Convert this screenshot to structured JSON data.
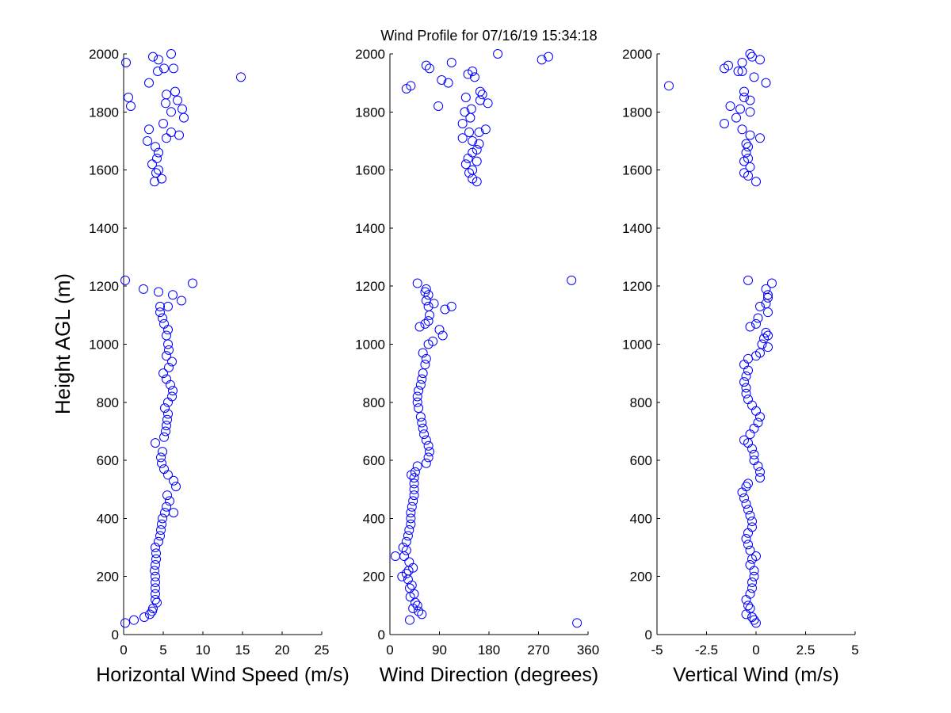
{
  "title": "Wind Profile for  07/16/19 15:34:18",
  "ylabel": "Height AGL (m)",
  "marker_color": "#0000ff",
  "chart_data": [
    {
      "type": "scatter",
      "xlabel": "Horizontal Wind Speed (m/s)",
      "xlim": [
        0,
        25
      ],
      "xticks": [
        0,
        5,
        10,
        15,
        20,
        25
      ],
      "xtick_labels": [
        "0",
        "5",
        "10",
        "15",
        "20",
        "25"
      ],
      "ylim": [
        0,
        2000
      ],
      "yticks": [
        0,
        200,
        400,
        600,
        800,
        1000,
        1200,
        1400,
        1600,
        1800,
        2000
      ],
      "ytick_labels": [
        "0",
        "200",
        "400",
        "600",
        "800",
        "1000",
        "1200",
        "1400",
        "1600",
        "1800",
        "2000"
      ],
      "points": [
        [
          0.2,
          40
        ],
        [
          1.3,
          50
        ],
        [
          2.6,
          60
        ],
        [
          3.3,
          70
        ],
        [
          3.6,
          80
        ],
        [
          3.7,
          90
        ],
        [
          4.2,
          110
        ],
        [
          4.0,
          120
        ],
        [
          4.0,
          140
        ],
        [
          4.0,
          160
        ],
        [
          4.0,
          180
        ],
        [
          4.0,
          200
        ],
        [
          3.9,
          220
        ],
        [
          4.0,
          240
        ],
        [
          4.1,
          260
        ],
        [
          4.1,
          280
        ],
        [
          4.0,
          300
        ],
        [
          4.4,
          320
        ],
        [
          4.6,
          340
        ],
        [
          4.7,
          360
        ],
        [
          4.8,
          380
        ],
        [
          4.9,
          400
        ],
        [
          5.2,
          420
        ],
        [
          6.3,
          420
        ],
        [
          5.4,
          440
        ],
        [
          5.8,
          460
        ],
        [
          5.5,
          480
        ],
        [
          6.6,
          510
        ],
        [
          6.3,
          530
        ],
        [
          5.6,
          550
        ],
        [
          5.1,
          570
        ],
        [
          4.8,
          590
        ],
        [
          4.7,
          610
        ],
        [
          4.9,
          630
        ],
        [
          4.0,
          660
        ],
        [
          5.1,
          680
        ],
        [
          5.3,
          700
        ],
        [
          5.4,
          720
        ],
        [
          5.5,
          740
        ],
        [
          5.6,
          760
        ],
        [
          5.2,
          780
        ],
        [
          5.6,
          800
        ],
        [
          6.1,
          820
        ],
        [
          6.2,
          840
        ],
        [
          5.9,
          860
        ],
        [
          5.4,
          880
        ],
        [
          5.0,
          900
        ],
        [
          5.7,
          920
        ],
        [
          6.1,
          940
        ],
        [
          5.4,
          960
        ],
        [
          5.7,
          980
        ],
        [
          5.6,
          1000
        ],
        [
          5.4,
          1030
        ],
        [
          5.6,
          1050
        ],
        [
          5.1,
          1070
        ],
        [
          4.9,
          1090
        ],
        [
          4.6,
          1110
        ],
        [
          4.6,
          1130
        ],
        [
          5.6,
          1130
        ],
        [
          7.3,
          1150
        ],
        [
          6.2,
          1170
        ],
        [
          4.4,
          1180
        ],
        [
          2.5,
          1190
        ],
        [
          8.7,
          1210
        ],
        [
          0.2,
          1220
        ],
        [
          3.9,
          1560
        ],
        [
          4.8,
          1570
        ],
        [
          4.1,
          1590
        ],
        [
          4.4,
          1600
        ],
        [
          3.6,
          1620
        ],
        [
          4.2,
          1640
        ],
        [
          4.4,
          1660
        ],
        [
          4.0,
          1680
        ],
        [
          3.0,
          1700
        ],
        [
          5.4,
          1710
        ],
        [
          7.0,
          1720
        ],
        [
          6.0,
          1730
        ],
        [
          3.2,
          1740
        ],
        [
          5.0,
          1760
        ],
        [
          7.6,
          1780
        ],
        [
          6.0,
          1800
        ],
        [
          7.4,
          1810
        ],
        [
          0.9,
          1820
        ],
        [
          5.3,
          1830
        ],
        [
          6.8,
          1840
        ],
        [
          0.6,
          1850
        ],
        [
          5.4,
          1860
        ],
        [
          6.5,
          1870
        ],
        [
          3.2,
          1900
        ],
        [
          14.8,
          1920
        ],
        [
          4.3,
          1940
        ],
        [
          5.1,
          1950
        ],
        [
          6.3,
          1950
        ],
        [
          4.4,
          1980
        ],
        [
          3.7,
          1990
        ],
        [
          0.3,
          1970
        ],
        [
          6.0,
          2000
        ]
      ]
    },
    {
      "type": "scatter",
      "xlabel": "Wind Direction (degrees)",
      "xlim": [
        0,
        360
      ],
      "xticks": [
        0,
        90,
        180,
        270,
        360
      ],
      "xtick_labels": [
        "0",
        "90",
        "180",
        "270",
        "360"
      ],
      "ylim": [
        0,
        2000
      ],
      "yticks": [
        0,
        200,
        400,
        600,
        800,
        1000,
        1200,
        1400,
        1600,
        1800,
        2000
      ],
      "ytick_labels": [
        "0",
        "200",
        "400",
        "600",
        "800",
        "1000",
        "1200",
        "1400",
        "1600",
        "1800",
        "2000"
      ],
      "points": [
        [
          340,
          40
        ],
        [
          36,
          50
        ],
        [
          58,
          70
        ],
        [
          52,
          80
        ],
        [
          42,
          90
        ],
        [
          50,
          100
        ],
        [
          46,
          110
        ],
        [
          37,
          130
        ],
        [
          44,
          140
        ],
        [
          36,
          160
        ],
        [
          40,
          170
        ],
        [
          33,
          190
        ],
        [
          22,
          200
        ],
        [
          30,
          210
        ],
        [
          34,
          220
        ],
        [
          42,
          230
        ],
        [
          35,
          250
        ],
        [
          26,
          270
        ],
        [
          10,
          270
        ],
        [
          30,
          290
        ],
        [
          24,
          300
        ],
        [
          30,
          320
        ],
        [
          33,
          340
        ],
        [
          35,
          360
        ],
        [
          38,
          380
        ],
        [
          38,
          400
        ],
        [
          38,
          420
        ],
        [
          40,
          440
        ],
        [
          42,
          460
        ],
        [
          44,
          480
        ],
        [
          44,
          500
        ],
        [
          44,
          520
        ],
        [
          44,
          540
        ],
        [
          39,
          550
        ],
        [
          46,
          560
        ],
        [
          50,
          580
        ],
        [
          66,
          590
        ],
        [
          70,
          610
        ],
        [
          72,
          630
        ],
        [
          70,
          650
        ],
        [
          66,
          670
        ],
        [
          62,
          690
        ],
        [
          60,
          710
        ],
        [
          58,
          730
        ],
        [
          56,
          750
        ],
        [
          52,
          780
        ],
        [
          50,
          800
        ],
        [
          50,
          820
        ],
        [
          52,
          840
        ],
        [
          56,
          860
        ],
        [
          58,
          880
        ],
        [
          60,
          900
        ],
        [
          64,
          930
        ],
        [
          66,
          950
        ],
        [
          60,
          970
        ],
        [
          70,
          1000
        ],
        [
          78,
          1010
        ],
        [
          96,
          1030
        ],
        [
          90,
          1050
        ],
        [
          54,
          1060
        ],
        [
          64,
          1070
        ],
        [
          70,
          1080
        ],
        [
          72,
          1100
        ],
        [
          100,
          1120
        ],
        [
          112,
          1130
        ],
        [
          70,
          1130
        ],
        [
          80,
          1140
        ],
        [
          66,
          1150
        ],
        [
          70,
          1170
        ],
        [
          64,
          1180
        ],
        [
          66,
          1190
        ],
        [
          50,
          1210
        ],
        [
          330,
          1220
        ],
        [
          158,
          1560
        ],
        [
          150,
          1570
        ],
        [
          144,
          1590
        ],
        [
          150,
          1600
        ],
        [
          138,
          1620
        ],
        [
          158,
          1630
        ],
        [
          142,
          1640
        ],
        [
          150,
          1660
        ],
        [
          158,
          1670
        ],
        [
          162,
          1690
        ],
        [
          150,
          1700
        ],
        [
          132,
          1710
        ],
        [
          144,
          1730
        ],
        [
          162,
          1730
        ],
        [
          174,
          1740
        ],
        [
          132,
          1760
        ],
        [
          146,
          1780
        ],
        [
          136,
          1800
        ],
        [
          148,
          1810
        ],
        [
          88,
          1820
        ],
        [
          178,
          1830
        ],
        [
          164,
          1840
        ],
        [
          138,
          1850
        ],
        [
          168,
          1860
        ],
        [
          164,
          1870
        ],
        [
          30,
          1880
        ],
        [
          38,
          1890
        ],
        [
          94,
          1910
        ],
        [
          106,
          1900
        ],
        [
          154,
          1920
        ],
        [
          142,
          1930
        ],
        [
          150,
          1940
        ],
        [
          72,
          1950
        ],
        [
          66,
          1960
        ],
        [
          112,
          1970
        ],
        [
          276,
          1980
        ],
        [
          288,
          1990
        ],
        [
          196,
          2000
        ]
      ]
    },
    {
      "type": "scatter",
      "xlabel": "Vertical Wind (m/s)",
      "xlim": [
        -5,
        5
      ],
      "xticks": [
        -5,
        -2.5,
        0,
        2.5,
        5
      ],
      "xtick_labels": [
        "-5",
        "-2.5",
        "0",
        "2.5",
        "5"
      ],
      "ylim": [
        0,
        2000
      ],
      "yticks": [
        0,
        200,
        400,
        600,
        800,
        1000,
        1200,
        1400,
        1600,
        1800,
        2000
      ],
      "ytick_labels": [
        "0",
        "200",
        "400",
        "600",
        "800",
        "1000",
        "1200",
        "1400",
        "1600",
        "1800",
        "2000"
      ],
      "points": [
        [
          0.0,
          40
        ],
        [
          -0.1,
          50
        ],
        [
          -0.2,
          60
        ],
        [
          -0.5,
          70
        ],
        [
          -0.3,
          90
        ],
        [
          -0.4,
          100
        ],
        [
          -0.5,
          120
        ],
        [
          -0.3,
          140
        ],
        [
          -0.2,
          160
        ],
        [
          -0.2,
          180
        ],
        [
          -0.1,
          200
        ],
        [
          -0.1,
          220
        ],
        [
          -0.3,
          240
        ],
        [
          -0.2,
          260
        ],
        [
          0.0,
          270
        ],
        [
          -0.3,
          290
        ],
        [
          -0.4,
          310
        ],
        [
          -0.5,
          330
        ],
        [
          -0.4,
          350
        ],
        [
          -0.2,
          370
        ],
        [
          -0.2,
          390
        ],
        [
          -0.3,
          410
        ],
        [
          -0.4,
          430
        ],
        [
          -0.5,
          450
        ],
        [
          -0.6,
          470
        ],
        [
          -0.7,
          490
        ],
        [
          -0.5,
          510
        ],
        [
          -0.4,
          520
        ],
        [
          0.2,
          540
        ],
        [
          0.2,
          560
        ],
        [
          0.1,
          580
        ],
        [
          -0.1,
          600
        ],
        [
          -0.1,
          620
        ],
        [
          -0.2,
          640
        ],
        [
          -0.4,
          660
        ],
        [
          -0.6,
          670
        ],
        [
          -0.3,
          690
        ],
        [
          -0.1,
          710
        ],
        [
          0.1,
          730
        ],
        [
          0.2,
          750
        ],
        [
          0.0,
          770
        ],
        [
          -0.2,
          790
        ],
        [
          -0.4,
          810
        ],
        [
          -0.5,
          830
        ],
        [
          -0.5,
          850
        ],
        [
          -0.6,
          870
        ],
        [
          -0.5,
          890
        ],
        [
          -0.4,
          910
        ],
        [
          -0.6,
          930
        ],
        [
          -0.4,
          950
        ],
        [
          0.0,
          960
        ],
        [
          0.2,
          970
        ],
        [
          0.6,
          990
        ],
        [
          0.3,
          1000
        ],
        [
          0.4,
          1020
        ],
        [
          0.6,
          1030
        ],
        [
          0.5,
          1040
        ],
        [
          -0.3,
          1060
        ],
        [
          0.0,
          1070
        ],
        [
          0.1,
          1090
        ],
        [
          0.6,
          1110
        ],
        [
          0.2,
          1130
        ],
        [
          0.5,
          1140
        ],
        [
          0.6,
          1160
        ],
        [
          0.6,
          1170
        ],
        [
          0.5,
          1190
        ],
        [
          0.8,
          1210
        ],
        [
          -0.4,
          1220
        ],
        [
          0.0,
          1560
        ],
        [
          -0.4,
          1580
        ],
        [
          -0.6,
          1590
        ],
        [
          -0.3,
          1610
        ],
        [
          -0.6,
          1630
        ],
        [
          -0.4,
          1640
        ],
        [
          -0.5,
          1660
        ],
        [
          -0.4,
          1680
        ],
        [
          -0.5,
          1690
        ],
        [
          0.2,
          1710
        ],
        [
          -0.3,
          1720
        ],
        [
          -1.6,
          1760
        ],
        [
          -0.7,
          1740
        ],
        [
          -1.0,
          1780
        ],
        [
          -0.3,
          1800
        ],
        [
          -0.8,
          1810
        ],
        [
          -1.3,
          1820
        ],
        [
          -0.3,
          1840
        ],
        [
          -0.6,
          1850
        ],
        [
          -0.6,
          1870
        ],
        [
          0.5,
          1900
        ],
        [
          -4.4,
          1890
        ],
        [
          -0.1,
          1920
        ],
        [
          -0.7,
          1940
        ],
        [
          -0.9,
          1940
        ],
        [
          -1.6,
          1950
        ],
        [
          -1.4,
          1960
        ],
        [
          -0.7,
          1970
        ],
        [
          0.2,
          1980
        ],
        [
          -0.2,
          1990
        ],
        [
          -0.3,
          2000
        ]
      ]
    }
  ]
}
